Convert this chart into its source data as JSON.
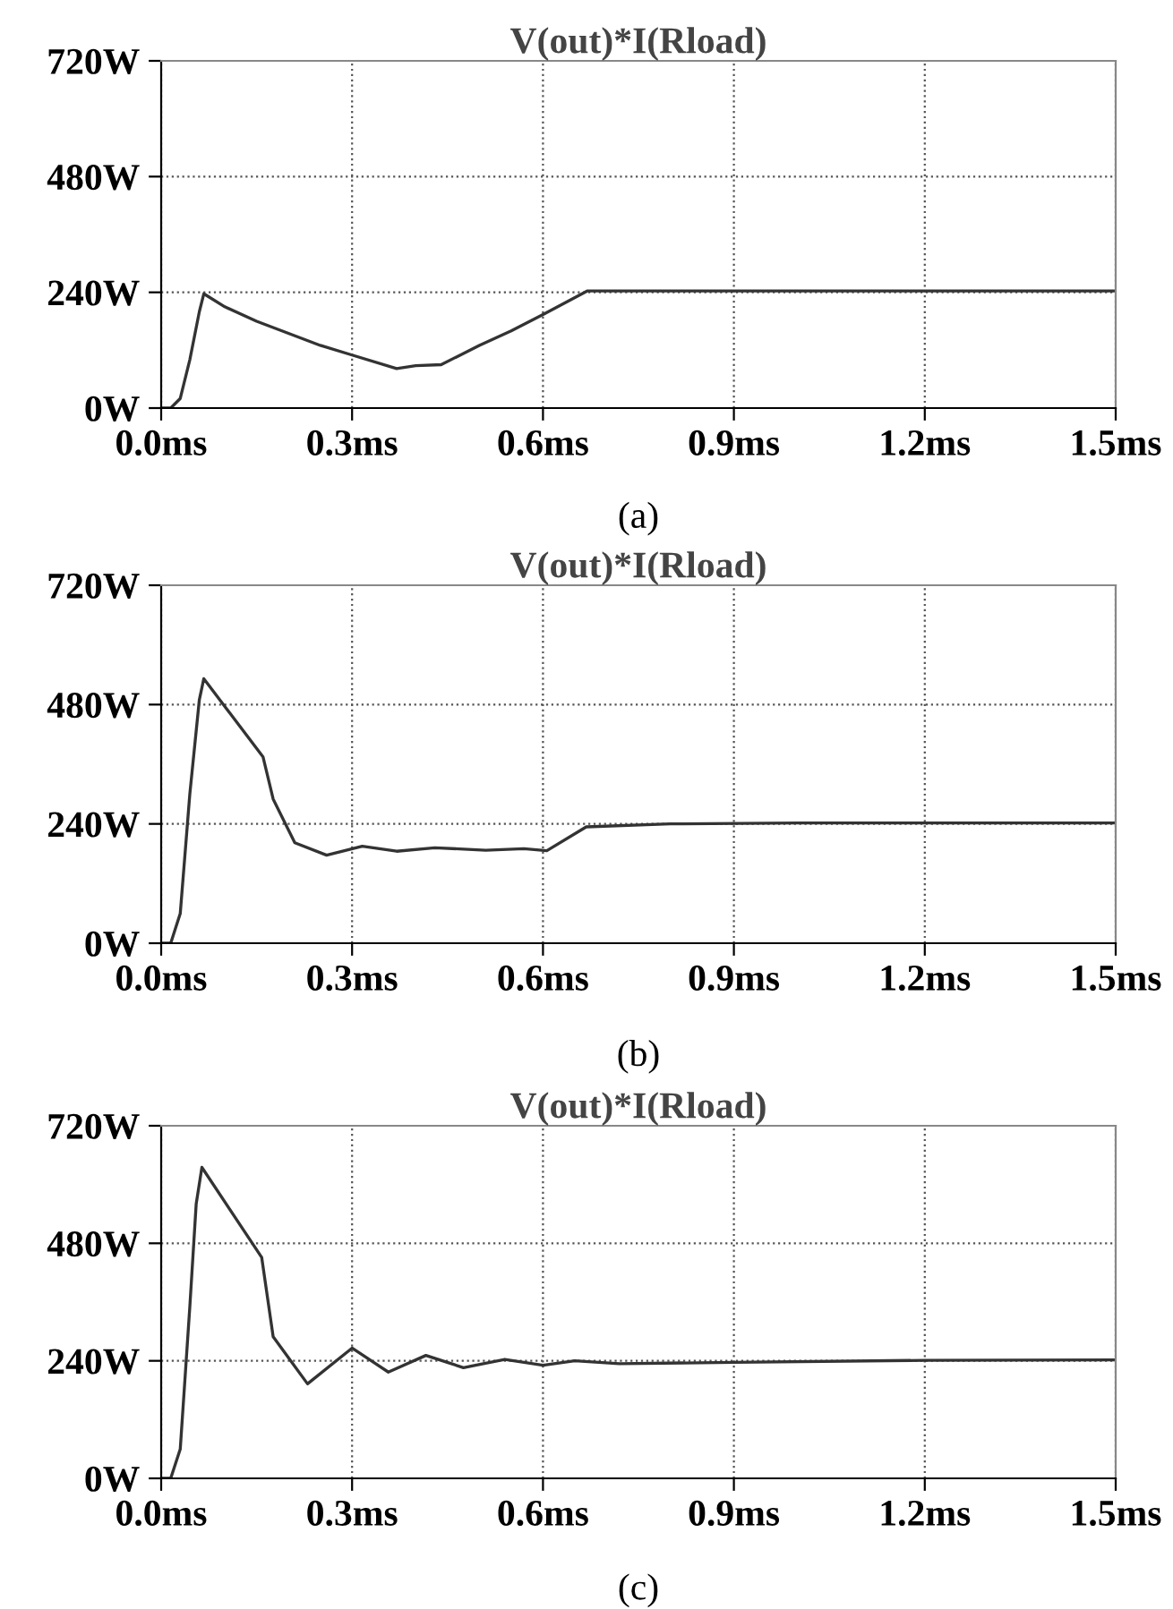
{
  "chart_data": [
    {
      "type": "line",
      "title": "V(out)*I(Rload)",
      "annotations": [
        "(a)"
      ],
      "xlim": [
        0,
        1.5
      ],
      "ylim": [
        0,
        720
      ],
      "grid": true,
      "line_style": "solid",
      "xticks": [
        {
          "value": 0,
          "label": "0.0ms"
        },
        {
          "value": 0.3,
          "label": "0.3ms"
        },
        {
          "value": 0.6,
          "label": "0.6ms"
        },
        {
          "value": 0.9,
          "label": "0.9ms"
        },
        {
          "value": 1.2,
          "label": "1.2ms"
        },
        {
          "value": 1.5,
          "label": "1.5ms"
        }
      ],
      "yticks": [
        {
          "value": 0,
          "label": "0W"
        },
        {
          "value": 240,
          "label": "240W"
        },
        {
          "value": 480,
          "label": "480W"
        },
        {
          "value": 720,
          "label": "720W"
        }
      ],
      "series": [
        {
          "color": "#333333",
          "x": [
            0,
            0.015,
            0.03,
            0.045,
            0.06,
            0.067,
            0.1,
            0.15,
            0.2,
            0.25,
            0.3,
            0.37,
            0.4,
            0.44,
            0.5,
            0.55,
            0.6,
            0.67,
            0.8,
            1.0,
            1.5
          ],
          "values": [
            0,
            0,
            20,
            100,
            200,
            237,
            210,
            180,
            155,
            130,
            110,
            82,
            88,
            90,
            130,
            160,
            194,
            243,
            243,
            243,
            243
          ]
        }
      ]
    },
    {
      "type": "line",
      "title": "V(out)*I(Rload)",
      "annotations": [
        "(b)"
      ],
      "xlim": [
        0,
        1.5
      ],
      "ylim": [
        0,
        720
      ],
      "grid": true,
      "line_style": "solid",
      "xticks": [
        {
          "value": 0,
          "label": "0.0ms"
        },
        {
          "value": 0.3,
          "label": "0.3ms"
        },
        {
          "value": 0.6,
          "label": "0.6ms"
        },
        {
          "value": 0.9,
          "label": "0.9ms"
        },
        {
          "value": 1.2,
          "label": "1.2ms"
        },
        {
          "value": 1.5,
          "label": "1.5ms"
        }
      ],
      "yticks": [
        {
          "value": 0,
          "label": "0W"
        },
        {
          "value": 240,
          "label": "240W"
        },
        {
          "value": 480,
          "label": "480W"
        },
        {
          "value": 720,
          "label": "720W"
        }
      ],
      "series": [
        {
          "color": "#333333",
          "x": [
            0,
            0.015,
            0.03,
            0.045,
            0.06,
            0.067,
            0.16,
            0.176,
            0.21,
            0.26,
            0.316,
            0.37,
            0.43,
            0.51,
            0.57,
            0.606,
            0.668,
            0.8,
            1.0,
            1.5
          ],
          "values": [
            0,
            0,
            60,
            300,
            490,
            532,
            375,
            290,
            202,
            177,
            195,
            185,
            192,
            187,
            190,
            186,
            234,
            240,
            242,
            242
          ]
        }
      ]
    },
    {
      "type": "line",
      "title": "V(out)*I(Rload)",
      "annotations": [
        "(c)"
      ],
      "xlim": [
        0,
        1.5
      ],
      "ylim": [
        0,
        720
      ],
      "grid": true,
      "line_style": "solid",
      "xticks": [
        {
          "value": 0,
          "label": "0.0ms"
        },
        {
          "value": 0.3,
          "label": "0.3ms"
        },
        {
          "value": 0.6,
          "label": "0.6ms"
        },
        {
          "value": 0.9,
          "label": "0.9ms"
        },
        {
          "value": 1.2,
          "label": "1.2ms"
        },
        {
          "value": 1.5,
          "label": "1.5ms"
        }
      ],
      "yticks": [
        {
          "value": 0,
          "label": "0W"
        },
        {
          "value": 240,
          "label": "240W"
        },
        {
          "value": 480,
          "label": "480W"
        },
        {
          "value": 720,
          "label": "720W"
        }
      ],
      "series": [
        {
          "color": "#333333",
          "x": [
            0,
            0.015,
            0.03,
            0.045,
            0.055,
            0.064,
            0.158,
            0.176,
            0.23,
            0.3,
            0.357,
            0.416,
            0.475,
            0.54,
            0.6,
            0.65,
            0.72,
            0.9,
            1.2,
            1.5
          ],
          "values": [
            0,
            0,
            60,
            350,
            560,
            635,
            451,
            289,
            193,
            266,
            217,
            251,
            226,
            243,
            231,
            240,
            234,
            237,
            241,
            242
          ]
        }
      ]
    }
  ]
}
